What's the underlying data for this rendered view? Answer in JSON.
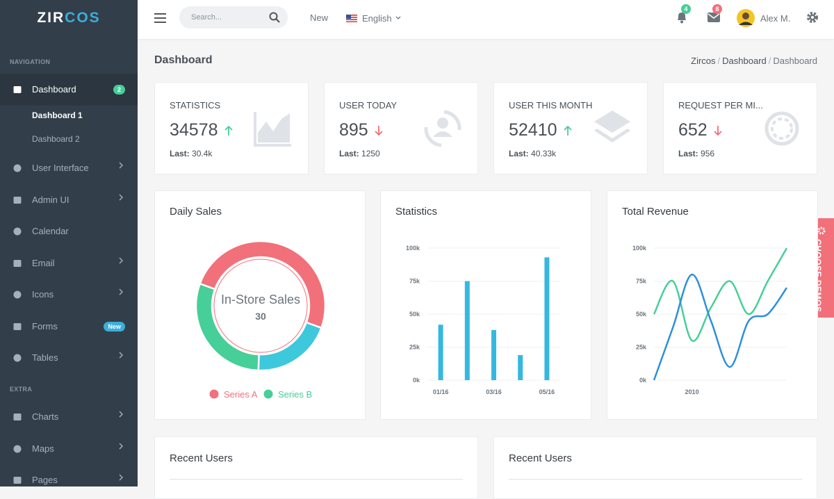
{
  "sidebar": {
    "brand": {
      "part1": "ZIR",
      "part2": "COS"
    },
    "sections": [
      {
        "heading": "NAVIGATION",
        "items": [
          {
            "label": "Dashboard",
            "badge": "2",
            "active": true,
            "children": [
              "Dashboard 1",
              "Dashboard 2"
            ]
          },
          {
            "label": "User Interface",
            "arrow": true
          },
          {
            "label": "Admin UI",
            "arrow": true
          },
          {
            "label": "Calendar"
          },
          {
            "label": "Email",
            "arrow": true
          },
          {
            "label": "Icons",
            "arrow": true
          },
          {
            "label": "Forms",
            "badge": "New"
          },
          {
            "label": "Tables",
            "arrow": true
          }
        ]
      },
      {
        "heading": "EXTRA",
        "items": [
          {
            "label": "Charts",
            "arrow": true
          },
          {
            "label": "Maps",
            "arrow": true
          },
          {
            "label": "Pages",
            "arrow": true
          }
        ]
      }
    ]
  },
  "topbar": {
    "search_placeholder": "Search...",
    "new": "New",
    "language": "English",
    "notifications": 4,
    "messages": 8,
    "user": "Alex M."
  },
  "page": {
    "title": "Dashboard",
    "breadcrumb": [
      "Zircos",
      "Dashboard",
      "Dashboard"
    ]
  },
  "stats": [
    {
      "title": "STATISTICS",
      "value": 34578,
      "trend": "up",
      "last_label": "Last:",
      "last": "30.4k"
    },
    {
      "title": "USER TODAY",
      "value": 895,
      "trend": "down",
      "last_label": "Last:",
      "last": "1250"
    },
    {
      "title": "USER THIS MONTH",
      "value": 52410,
      "trend": "up",
      "last_label": "Last:",
      "last": "40.33k"
    },
    {
      "title": "REQUEST PER MI...",
      "value": 652,
      "trend": "down",
      "last_label": "Last:",
      "last": "956"
    }
  ],
  "charts": [
    {
      "type": "donut",
      "title": "Daily Sales",
      "categories": [
        null,
        null,
        "In-Store Sales"
      ],
      "values": [
        50,
        20,
        30
      ],
      "colors": [
        "#f1707a",
        "#3ec8db",
        "#46cf98"
      ],
      "center_index": 2,
      "legend": [
        {
          "name": "Series A",
          "color": "#f1707a"
        },
        {
          "name": "Series B",
          "color": "#46cf98"
        }
      ]
    },
    {
      "type": "bar",
      "title": "Statistics",
      "categories": [
        "01/16",
        null,
        "03/16",
        null,
        "05/16"
      ],
      "values": [
        42000,
        75000,
        38000,
        19000,
        93000
      ],
      "color": "#35b8e0",
      "ylim": [
        0,
        100000
      ],
      "yticks": [
        {
          "value": 0,
          "label": "0k"
        },
        {
          "value": 25000,
          "label": "25k"
        },
        {
          "value": 50000,
          "label": "50k"
        },
        {
          "value": 75000,
          "label": "75k"
        },
        {
          "value": 100000,
          "label": "100k"
        }
      ],
      "grid": true
    },
    {
      "type": "line",
      "title": "Total Revenue",
      "categories": [
        null,
        null,
        "2010",
        null,
        null,
        null,
        null,
        null
      ],
      "series": [
        {
          "color": "#46cf98",
          "values": [
            50000,
            75000,
            30000,
            55000,
            75000,
            50000,
            75000,
            100000
          ]
        },
        {
          "color": "#2d8fdc",
          "values": [
            0,
            40000,
            80000,
            45000,
            10000,
            45000,
            50000,
            70000
          ]
        }
      ],
      "ylim": [
        0,
        100000
      ],
      "yticks": [
        {
          "value": 0,
          "label": "0k"
        },
        {
          "value": 25000,
          "label": "25k"
        },
        {
          "value": 50000,
          "label": "50k"
        },
        {
          "value": 75000,
          "label": "75k"
        },
        {
          "value": 100000,
          "label": "100k"
        }
      ],
      "grid": true
    }
  ],
  "panels": [
    {
      "title": "Recent Users"
    },
    {
      "title": "Recent Users"
    }
  ],
  "demo_tab": "CHOOSE DEMOS"
}
